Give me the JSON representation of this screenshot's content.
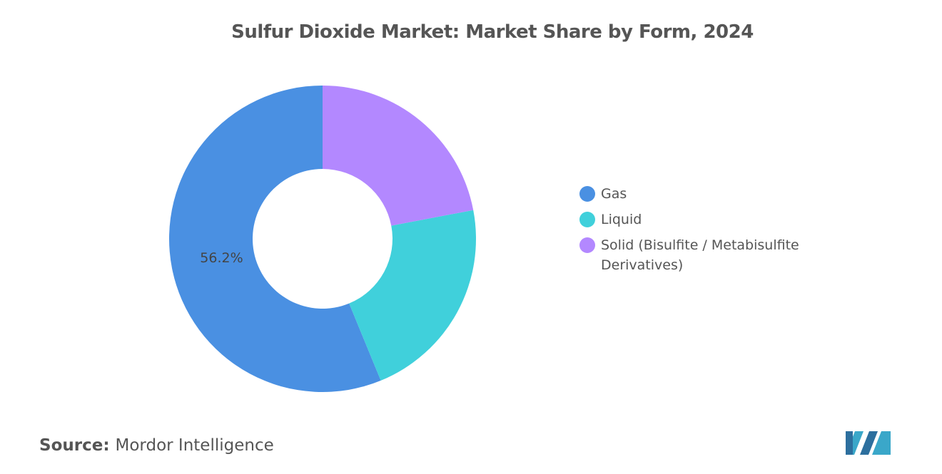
{
  "chart_data": {
    "type": "donut",
    "title": "Sulfur Dioxide Market: Market Share by Form, 2024",
    "categories": [
      "Gas",
      "Liquid",
      "Solid (Bisulfite / Metabisulfite Derivatives)"
    ],
    "values": [
      56.2,
      21.8,
      22.0
    ],
    "value_labels": [
      "56.2%",
      null,
      null
    ],
    "colors": [
      "#4a90e2",
      "#40d0db",
      "#b388ff"
    ],
    "source_label": "Source:",
    "source": "Mordor Intelligence"
  }
}
